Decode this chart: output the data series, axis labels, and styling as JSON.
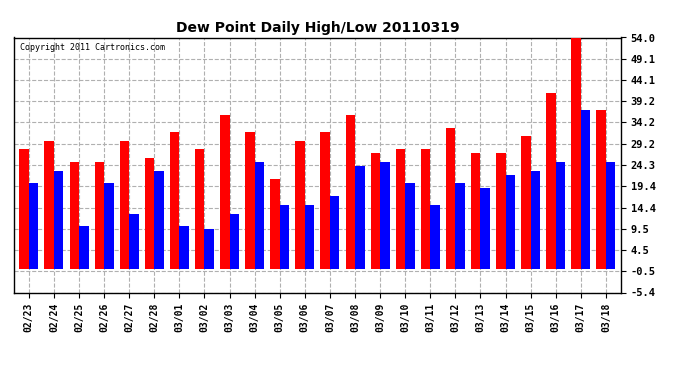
{
  "title": "Dew Point Daily High/Low 20110319",
  "copyright": "Copyright 2011 Cartronics.com",
  "dates": [
    "02/23",
    "02/24",
    "02/25",
    "02/26",
    "02/27",
    "02/28",
    "03/01",
    "03/02",
    "03/03",
    "03/04",
    "03/05",
    "03/06",
    "03/07",
    "03/08",
    "03/09",
    "03/10",
    "03/11",
    "03/12",
    "03/13",
    "03/14",
    "03/15",
    "03/16",
    "03/17",
    "03/18"
  ],
  "highs": [
    28.0,
    30.0,
    25.0,
    25.0,
    30.0,
    26.0,
    32.0,
    28.0,
    36.0,
    32.0,
    21.0,
    30.0,
    32.0,
    36.0,
    27.0,
    28.0,
    28.0,
    33.0,
    27.0,
    27.0,
    31.0,
    41.0,
    54.0,
    37.0
  ],
  "lows": [
    20.0,
    23.0,
    10.0,
    20.0,
    13.0,
    23.0,
    10.0,
    9.5,
    13.0,
    25.0,
    15.0,
    15.0,
    17.0,
    24.0,
    25.0,
    20.0,
    15.0,
    20.0,
    19.0,
    22.0,
    23.0,
    25.0,
    37.0,
    25.0
  ],
  "high_color": "#ff0000",
  "low_color": "#0000ff",
  "bg_color": "#ffffff",
  "plot_bg_color": "#ffffff",
  "grid_color": "#b0b0b0",
  "yticks": [
    -5.4,
    -0.5,
    4.5,
    9.5,
    14.4,
    19.4,
    24.3,
    29.2,
    34.2,
    39.2,
    44.1,
    49.1,
    54.0
  ],
  "ymin": -5.4,
  "ymax": 54.0,
  "bar_width": 0.38,
  "figwidth": 6.9,
  "figheight": 3.75,
  "dpi": 100
}
